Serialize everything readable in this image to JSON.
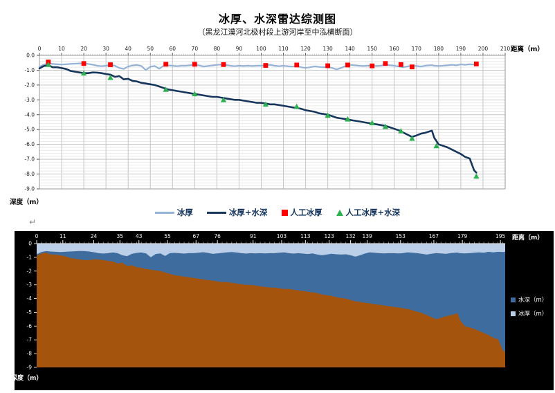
{
  "page": {
    "background": "#ffffff",
    "return_mark": "↵"
  },
  "header": {
    "title": "冰厚、水深雷达综测图",
    "subtitle": "（黑龙江漠河北极村段上游河岸至中泓横断面）"
  },
  "chart_data": [
    {
      "id": "ice-water-line-chart",
      "type": "line",
      "xlabel": "距离（m）",
      "ylabel": "深度（m）",
      "xlim": [
        0,
        210
      ],
      "xtick_step": 10,
      "ylim": [
        -9,
        0
      ],
      "ytick_step": 1,
      "ytick_minor": 0.2,
      "legend_position": "bottom",
      "grid": {
        "major": "#C6C6C6",
        "minor": "#E9E9E9",
        "border": "#9A9A9A"
      },
      "x": [
        0,
        2,
        4,
        6,
        8,
        10,
        12,
        14,
        16,
        18,
        20,
        22,
        24,
        26,
        28,
        30,
        32,
        34,
        36,
        38,
        40,
        42,
        44,
        46,
        48,
        50,
        52,
        54,
        56,
        58,
        60,
        62,
        64,
        66,
        68,
        70,
        72,
        74,
        76,
        78,
        80,
        82,
        84,
        86,
        88,
        90,
        92,
        94,
        96,
        98,
        100,
        102,
        104,
        106,
        108,
        110,
        112,
        114,
        116,
        118,
        120,
        122,
        124,
        126,
        128,
        130,
        132,
        134,
        136,
        138,
        140,
        142,
        144,
        146,
        148,
        150,
        152,
        154,
        156,
        158,
        160,
        162,
        164,
        166,
        168,
        170,
        172,
        174,
        176,
        177,
        178,
        180,
        182,
        184,
        186,
        188,
        190,
        192,
        194,
        196,
        197
      ],
      "series": [
        {
          "name": "冰厚",
          "color": "#95B3D7",
          "width": 2.2,
          "values": [
            -0.78,
            -0.62,
            -0.55,
            -0.58,
            -0.6,
            -0.62,
            -0.6,
            -0.58,
            -0.56,
            -0.54,
            -0.55,
            -0.58,
            -0.63,
            -0.7,
            -0.73,
            -0.7,
            -0.65,
            -0.7,
            -0.85,
            -0.92,
            -0.75,
            -0.68,
            -0.65,
            -0.72,
            -1.0,
            -0.76,
            -0.72,
            -0.9,
            -0.7,
            -0.68,
            -0.7,
            -0.73,
            -0.7,
            -0.7,
            -0.67,
            -0.63,
            -0.68,
            -0.75,
            -0.72,
            -0.68,
            -0.64,
            -0.62,
            -0.65,
            -0.7,
            -0.73,
            -0.7,
            -0.72,
            -0.7,
            -0.72,
            -0.7,
            -0.7,
            -0.67,
            -0.64,
            -0.7,
            -0.73,
            -0.7,
            -0.73,
            -0.76,
            -0.72,
            -0.8,
            -0.85,
            -0.8,
            -0.74,
            -0.78,
            -0.8,
            -0.78,
            -0.85,
            -0.95,
            -0.85,
            -0.73,
            -0.64,
            -0.67,
            -0.7,
            -0.72,
            -0.7,
            -0.7,
            -0.72,
            -0.7,
            -0.64,
            -0.67,
            -0.7,
            -0.75,
            -0.8,
            -0.74,
            -0.69,
            -0.72,
            -0.75,
            -0.7,
            -0.67,
            -0.66,
            -0.7,
            -0.72,
            -0.7,
            -0.67,
            -0.64,
            -0.67,
            -0.6,
            -0.64,
            -0.6,
            -0.62,
            -0.6
          ]
        },
        {
          "name": "冰厚+水深",
          "color": "#16365C",
          "width": 2.6,
          "values": [
            -0.88,
            -0.72,
            -0.66,
            -0.8,
            -0.8,
            -0.86,
            -0.92,
            -1.05,
            -1.1,
            -1.15,
            -1.2,
            -1.2,
            -1.15,
            -1.16,
            -1.2,
            -1.26,
            -1.3,
            -1.45,
            -1.4,
            -1.62,
            -1.58,
            -1.72,
            -1.76,
            -1.85,
            -1.9,
            -1.95,
            -2.0,
            -2.1,
            -2.2,
            -2.3,
            -2.35,
            -2.4,
            -2.45,
            -2.5,
            -2.55,
            -2.6,
            -2.65,
            -2.7,
            -2.75,
            -2.8,
            -2.8,
            -2.85,
            -2.9,
            -2.95,
            -3.0,
            -3.0,
            -3.05,
            -3.1,
            -3.15,
            -3.2,
            -3.2,
            -3.25,
            -3.3,
            -3.3,
            -3.35,
            -3.4,
            -3.45,
            -3.5,
            -3.55,
            -3.6,
            -3.7,
            -3.75,
            -3.8,
            -3.9,
            -3.95,
            -4.0,
            -4.1,
            -4.2,
            -4.25,
            -4.3,
            -4.35,
            -4.4,
            -4.45,
            -4.5,
            -4.55,
            -4.6,
            -4.65,
            -4.7,
            -4.75,
            -4.85,
            -4.95,
            -5.05,
            -5.2,
            -5.35,
            -5.5,
            -5.4,
            -5.28,
            -5.22,
            -5.12,
            -5.08,
            -5.55,
            -6.0,
            -6.1,
            -6.2,
            -6.35,
            -6.5,
            -6.65,
            -6.85,
            -6.95,
            -7.75,
            -7.9
          ]
        }
      ],
      "scatter": [
        {
          "name": "人工冰厚",
          "marker": "square",
          "color": "#FF0000",
          "points": [
            [
              4,
              -0.45
            ],
            [
              20,
              -0.55
            ],
            [
              32,
              -0.63
            ],
            [
              57,
              -0.6
            ],
            [
              70,
              -0.6
            ],
            [
              83,
              -0.62
            ],
            [
              102,
              -0.68
            ],
            [
              116,
              -0.65
            ],
            [
              130,
              -0.7
            ],
            [
              139,
              -0.65
            ],
            [
              150,
              -0.71
            ],
            [
              156,
              -0.55
            ],
            [
              163,
              -0.62
            ],
            [
              168,
              -0.78
            ],
            [
              197,
              -0.58
            ]
          ]
        },
        {
          "name": "人工冰厚+水深",
          "marker": "triangle",
          "color": "#2EB050",
          "points": [
            [
              4,
              -0.62
            ],
            [
              20,
              -1.2
            ],
            [
              32,
              -1.5
            ],
            [
              57,
              -2.3
            ],
            [
              70,
              -2.6
            ],
            [
              83,
              -3.0
            ],
            [
              102,
              -3.3
            ],
            [
              116,
              -3.45
            ],
            [
              130,
              -4.05
            ],
            [
              139,
              -4.3
            ],
            [
              150,
              -4.55
            ],
            [
              156,
              -4.8
            ],
            [
              163,
              -5.1
            ],
            [
              168,
              -5.6
            ],
            [
              179,
              -6.1
            ],
            [
              197,
              -8.15
            ]
          ]
        }
      ]
    },
    {
      "id": "depth-stacked-area-chart",
      "type": "area",
      "background": "#000000",
      "xlabel": "距离（m）",
      "ylabel": "深度（m）",
      "categories": [
        0,
        11,
        24,
        35,
        43,
        55,
        67,
        76,
        91,
        103,
        113,
        123,
        132,
        139,
        153,
        167,
        179,
        195
      ],
      "xlim": [
        0,
        197
      ],
      "ylim": [
        -9,
        0
      ],
      "ytick_step": 1,
      "legend_position": "right",
      "riverbed_color": "#A4540C",
      "series": [
        {
          "name": "水深（m）",
          "color": "#3E6C9E"
        },
        {
          "name": "冰厚（m）",
          "color": "#BCCFE8"
        }
      ],
      "x": [
        0,
        2,
        4,
        6,
        8,
        10,
        12,
        14,
        16,
        18,
        20,
        22,
        24,
        26,
        28,
        30,
        32,
        34,
        36,
        38,
        40,
        42,
        44,
        46,
        48,
        50,
        52,
        54,
        56,
        58,
        60,
        62,
        64,
        66,
        68,
        70,
        72,
        74,
        76,
        78,
        80,
        82,
        84,
        86,
        88,
        90,
        92,
        94,
        96,
        98,
        100,
        102,
        104,
        106,
        108,
        110,
        112,
        114,
        116,
        118,
        120,
        122,
        124,
        126,
        128,
        130,
        132,
        134,
        136,
        138,
        140,
        142,
        144,
        146,
        148,
        150,
        152,
        154,
        156,
        158,
        160,
        162,
        164,
        166,
        168,
        170,
        172,
        174,
        176,
        177,
        178,
        180,
        182,
        184,
        186,
        188,
        190,
        192,
        194,
        196,
        197
      ],
      "ice_bottom": [
        -0.78,
        -0.62,
        -0.55,
        -0.58,
        -0.6,
        -0.62,
        -0.6,
        -0.58,
        -0.56,
        -0.54,
        -0.55,
        -0.58,
        -0.63,
        -0.7,
        -0.73,
        -0.7,
        -0.65,
        -0.7,
        -0.85,
        -0.92,
        -0.75,
        -0.68,
        -0.65,
        -0.72,
        -1.0,
        -0.76,
        -0.72,
        -0.9,
        -0.7,
        -0.68,
        -0.7,
        -0.73,
        -0.7,
        -0.7,
        -0.67,
        -0.63,
        -0.68,
        -0.75,
        -0.72,
        -0.68,
        -0.64,
        -0.62,
        -0.65,
        -0.7,
        -0.73,
        -0.7,
        -0.72,
        -0.7,
        -0.72,
        -0.7,
        -0.7,
        -0.67,
        -0.64,
        -0.7,
        -0.73,
        -0.7,
        -0.73,
        -0.76,
        -0.72,
        -0.8,
        -0.85,
        -0.8,
        -0.74,
        -0.78,
        -0.8,
        -0.78,
        -0.85,
        -0.95,
        -0.85,
        -0.73,
        -0.64,
        -0.67,
        -0.7,
        -0.72,
        -0.7,
        -0.7,
        -0.72,
        -0.7,
        -0.64,
        -0.67,
        -0.7,
        -0.75,
        -0.8,
        -0.74,
        -0.69,
        -0.72,
        -0.75,
        -0.7,
        -0.67,
        -0.66,
        -0.7,
        -0.72,
        -0.7,
        -0.67,
        -0.64,
        -0.67,
        -0.6,
        -0.64,
        -0.6,
        -0.62,
        -0.6
      ],
      "water_bottom": [
        -0.88,
        -0.72,
        -0.66,
        -0.8,
        -0.8,
        -0.86,
        -0.92,
        -1.05,
        -1.1,
        -1.15,
        -1.2,
        -1.2,
        -1.15,
        -1.16,
        -1.2,
        -1.26,
        -1.3,
        -1.45,
        -1.4,
        -1.62,
        -1.58,
        -1.72,
        -1.76,
        -1.85,
        -1.9,
        -1.95,
        -2.0,
        -2.1,
        -2.2,
        -2.3,
        -2.35,
        -2.4,
        -2.45,
        -2.5,
        -2.55,
        -2.6,
        -2.65,
        -2.7,
        -2.75,
        -2.8,
        -2.8,
        -2.85,
        -2.9,
        -2.95,
        -3.0,
        -3.0,
        -3.05,
        -3.1,
        -3.15,
        -3.2,
        -3.2,
        -3.25,
        -3.3,
        -3.3,
        -3.35,
        -3.4,
        -3.45,
        -3.5,
        -3.55,
        -3.6,
        -3.7,
        -3.75,
        -3.8,
        -3.9,
        -3.95,
        -4.0,
        -4.1,
        -4.2,
        -4.25,
        -4.3,
        -4.35,
        -4.4,
        -4.45,
        -4.5,
        -4.55,
        -4.6,
        -4.65,
        -4.7,
        -4.75,
        -4.85,
        -4.95,
        -5.05,
        -5.2,
        -5.35,
        -5.5,
        -5.4,
        -5.28,
        -5.22,
        -5.12,
        -5.08,
        -5.55,
        -6.0,
        -6.1,
        -6.2,
        -6.35,
        -6.5,
        -6.65,
        -6.85,
        -6.95,
        -7.75,
        -7.9
      ]
    }
  ]
}
